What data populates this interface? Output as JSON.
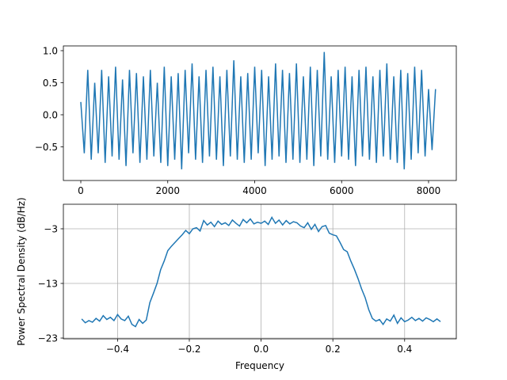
{
  "chart_data": [
    {
      "type": "line",
      "x": [
        0,
        80,
        160,
        240,
        320,
        400,
        480,
        560,
        640,
        720,
        800,
        880,
        960,
        1040,
        1120,
        1200,
        1280,
        1360,
        1440,
        1520,
        1600,
        1680,
        1760,
        1840,
        1920,
        2000,
        2080,
        2160,
        2240,
        2320,
        2400,
        2480,
        2560,
        2640,
        2720,
        2800,
        2880,
        2960,
        3040,
        3120,
        3200,
        3280,
        3360,
        3440,
        3520,
        3600,
        3680,
        3760,
        3840,
        3920,
        4000,
        4080,
        4160,
        4240,
        4320,
        4400,
        4480,
        4560,
        4640,
        4720,
        4800,
        4880,
        4960,
        5040,
        5120,
        5200,
        5280,
        5360,
        5440,
        5520,
        5600,
        5680,
        5760,
        5840,
        5920,
        6000,
        6080,
        6160,
        6240,
        6320,
        6400,
        6480,
        6560,
        6640,
        6720,
        6800,
        6880,
        6960,
        7040,
        7120,
        7200,
        7280,
        7360,
        7440,
        7520,
        7600,
        7680,
        7760,
        7840,
        7920,
        8000,
        8080,
        8160
      ],
      "series": [
        {
          "color": "#1f77b4",
          "values": [
            0.2,
            -0.6,
            0.7,
            -0.7,
            0.5,
            -0.6,
            0.7,
            -0.75,
            0.6,
            -0.65,
            0.75,
            -0.7,
            0.55,
            -0.8,
            0.7,
            -0.6,
            0.65,
            -0.75,
            0.6,
            -0.7,
            0.7,
            -0.65,
            0.5,
            -0.75,
            0.75,
            -0.8,
            0.6,
            -0.7,
            0.65,
            -0.85,
            0.7,
            -0.6,
            0.8,
            -0.7,
            0.6,
            -0.75,
            0.7,
            -0.65,
            0.75,
            -0.7,
            0.6,
            -0.8,
            0.7,
            -0.65,
            0.85,
            -0.7,
            0.6,
            -0.75,
            0.65,
            -0.7,
            0.75,
            -0.6,
            0.7,
            -0.8,
            0.6,
            -0.7,
            0.8,
            -0.65,
            0.7,
            -0.75,
            0.65,
            -0.7,
            0.8,
            -0.75,
            0.6,
            -0.7,
            0.75,
            -0.8,
            0.7,
            -0.65,
            0.98,
            -0.7,
            0.6,
            -0.75,
            0.7,
            -0.65,
            0.75,
            -0.7,
            0.6,
            -0.8,
            0.7,
            -0.65,
            0.75,
            -0.7,
            0.6,
            -0.75,
            0.7,
            -0.65,
            0.8,
            -0.7,
            0.6,
            -0.75,
            0.7,
            -0.85,
            0.65,
            -0.7,
            0.75,
            -0.6,
            0.7,
            -0.65,
            0.4,
            -0.55,
            0.4
          ]
        }
      ],
      "xlim": [
        -401,
        8638
      ],
      "ylim": [
        -1.025,
        1.074
      ],
      "xticks": [
        0,
        2000,
        4000,
        6000,
        8000
      ],
      "yticks": [
        {
          "value": -0.5,
          "label": "−0.5"
        },
        {
          "value": 0,
          "label": "0.0"
        },
        0.5,
        {
          "value": 1,
          "label": "1.0"
        }
      ],
      "grid": false
    },
    {
      "type": "line",
      "xlabel": "Frequency",
      "ylabel": "Power Spectral Density (dB/Hz)",
      "x": [
        -0.5,
        -0.49,
        -0.48,
        -0.47,
        -0.46,
        -0.45,
        -0.44,
        -0.43,
        -0.42,
        -0.41,
        -0.4,
        -0.39,
        -0.38,
        -0.37,
        -0.36,
        -0.35,
        -0.34,
        -0.33,
        -0.32,
        -0.31,
        -0.3,
        -0.29,
        -0.28,
        -0.27,
        -0.26,
        -0.25,
        -0.24,
        -0.23,
        -0.22,
        -0.21,
        -0.2,
        -0.19,
        -0.18,
        -0.17,
        -0.16,
        -0.15,
        -0.14,
        -0.13,
        -0.12,
        -0.11,
        -0.1,
        -0.09,
        -0.08,
        -0.07,
        -0.06,
        -0.05,
        -0.04,
        -0.03,
        -0.02,
        -0.01,
        0,
        0.01,
        0.02,
        0.03,
        0.04,
        0.05,
        0.06,
        0.07,
        0.08,
        0.09,
        0.1,
        0.11,
        0.12,
        0.13,
        0.14,
        0.15,
        0.16,
        0.17,
        0.18,
        0.19,
        0.2,
        0.21,
        0.22,
        0.23,
        0.24,
        0.25,
        0.26,
        0.27,
        0.28,
        0.29,
        0.3,
        0.31,
        0.32,
        0.33,
        0.34,
        0.35,
        0.36,
        0.37,
        0.38,
        0.39,
        0.4,
        0.41,
        0.42,
        0.43,
        0.44,
        0.45,
        0.46,
        0.47,
        0.48,
        0.49,
        0.5
      ],
      "series": [
        {
          "color": "#1f77b4",
          "values": [
            -19.5,
            -20.2,
            -19.8,
            -20.1,
            -19.4,
            -19.9,
            -18.9,
            -19.6,
            -19.2,
            -19.8,
            -18.7,
            -19.5,
            -19.8,
            -19.0,
            -20.5,
            -20.9,
            -19.6,
            -20.3,
            -19.7,
            -16.5,
            -14.8,
            -13.0,
            -10.5,
            -8.9,
            -7.0,
            -6.2,
            -5.5,
            -4.8,
            -4.1,
            -3.3,
            -3.9,
            -3.0,
            -2.8,
            -3.4,
            -1.5,
            -2.3,
            -1.8,
            -2.6,
            -1.6,
            -2.2,
            -1.9,
            -2.4,
            -1.4,
            -2.0,
            -2.5,
            -1.3,
            -1.9,
            -1.2,
            -2.1,
            -1.8,
            -2.0,
            -1.6,
            -2.2,
            -0.9,
            -2.0,
            -1.4,
            -2.3,
            -1.5,
            -2.1,
            -1.7,
            -1.9,
            -2.5,
            -2.8,
            -1.9,
            -3.1,
            -2.2,
            -3.5,
            -2.6,
            -2.4,
            -3.8,
            -4.1,
            -4.3,
            -5.5,
            -6.8,
            -7.2,
            -8.9,
            -10.4,
            -12.1,
            -14.0,
            -15.6,
            -17.8,
            -19.4,
            -19.9,
            -19.6,
            -20.5,
            -19.5,
            -19.9,
            -18.8,
            -20.3,
            -19.3,
            -20.0,
            -19.7,
            -19.2,
            -19.8,
            -19.4,
            -19.9,
            -19.3,
            -19.6,
            -20.0,
            -19.5,
            -20.0
          ]
        }
      ],
      "xlim": [
        -0.551,
        0.544
      ],
      "ylim": [
        -23.14,
        1.49
      ],
      "xticks": [
        {
          "value": -0.4,
          "label": "−0.4"
        },
        {
          "value": -0.2,
          "label": "−0.2"
        },
        {
          "value": 0,
          "label": "0.0"
        },
        0.2,
        0.4
      ],
      "yticks": [
        {
          "value": -23,
          "label": "−23"
        },
        {
          "value": -13,
          "label": "−13"
        },
        {
          "value": -3,
          "label": "−3"
        }
      ],
      "grid": true
    }
  ]
}
